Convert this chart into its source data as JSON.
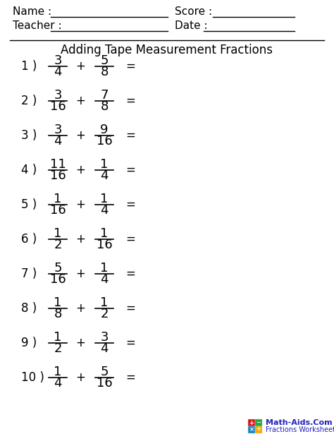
{
  "title": "Adding Tape Measurement Fractions",
  "problems": [
    {
      "num": "1 )",
      "n1": "3",
      "d1": "4",
      "n2": "5",
      "d2": "8"
    },
    {
      "num": "2 )",
      "n1": "3",
      "d1": "16",
      "n2": "7",
      "d2": "8"
    },
    {
      "num": "3 )",
      "n1": "3",
      "d1": "4",
      "n2": "9",
      "d2": "16"
    },
    {
      "num": "4 )",
      "n1": "11",
      "d1": "16",
      "n2": "1",
      "d2": "4"
    },
    {
      "num": "5 )",
      "n1": "1",
      "d1": "16",
      "n2": "1",
      "d2": "4"
    },
    {
      "num": "6 )",
      "n1": "1",
      "d1": "2",
      "n2": "1",
      "d2": "16"
    },
    {
      "num": "7 )",
      "n1": "5",
      "d1": "16",
      "n2": "1",
      "d2": "4"
    },
    {
      "num": "8 )",
      "n1": "1",
      "d1": "8",
      "n2": "1",
      "d2": "2"
    },
    {
      "num": "9 )",
      "n1": "1",
      "d1": "2",
      "n2": "3",
      "d2": "4"
    },
    {
      "num": "10 )",
      "n1": "1",
      "d1": "4",
      "n2": "5",
      "d2": "16"
    }
  ],
  "bg_color": "#ffffff",
  "text_color": "#000000",
  "logo_colors": {
    "plus": "#dd1111",
    "minus": "#22aa44",
    "times": "#1188cc",
    "div": "#ffaa00"
  },
  "watermark_text": "Math-Aids.Com",
  "watermark_sub": "Fractions Worksheets",
  "watermark_color": "#2222bb"
}
